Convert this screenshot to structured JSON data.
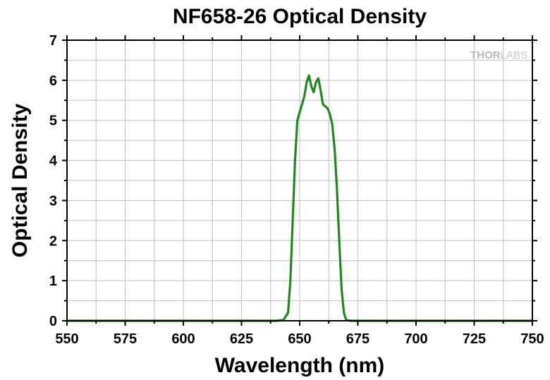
{
  "chart_data": {
    "type": "line",
    "title": "NF658-26 Optical Density",
    "xlabel": "Wavelength (nm)",
    "ylabel": "Optical Density",
    "xlim": [
      550,
      750
    ],
    "ylim": [
      0,
      7
    ],
    "xticks": [
      550,
      575,
      600,
      625,
      650,
      675,
      700,
      725,
      750
    ],
    "yticks": [
      0,
      1,
      2,
      3,
      4,
      5,
      6,
      7
    ],
    "grid": true,
    "watermark": {
      "bold": "THOR",
      "light": "LABS"
    },
    "colors": {
      "series": "#1e8a1e",
      "grid": "#c8c8c8",
      "axes": "#000000"
    },
    "series": [
      {
        "x": [
          550,
          600,
          640,
          643,
          645,
          646,
          647,
          648,
          649,
          650,
          651,
          652,
          653,
          654,
          655,
          656,
          657,
          658,
          659,
          660,
          661,
          662,
          663,
          664,
          665,
          666,
          667,
          668,
          669,
          670,
          672,
          675,
          700,
          750
        ],
        "y": [
          0,
          0,
          0,
          0.02,
          0.2,
          1.0,
          2.5,
          4.0,
          5.0,
          5.2,
          5.4,
          5.6,
          5.95,
          6.12,
          5.85,
          5.7,
          5.95,
          6.05,
          5.75,
          5.4,
          5.35,
          5.3,
          5.15,
          4.9,
          4.3,
          3.3,
          2.0,
          0.8,
          0.2,
          0.02,
          0,
          0,
          0,
          0
        ]
      }
    ]
  }
}
